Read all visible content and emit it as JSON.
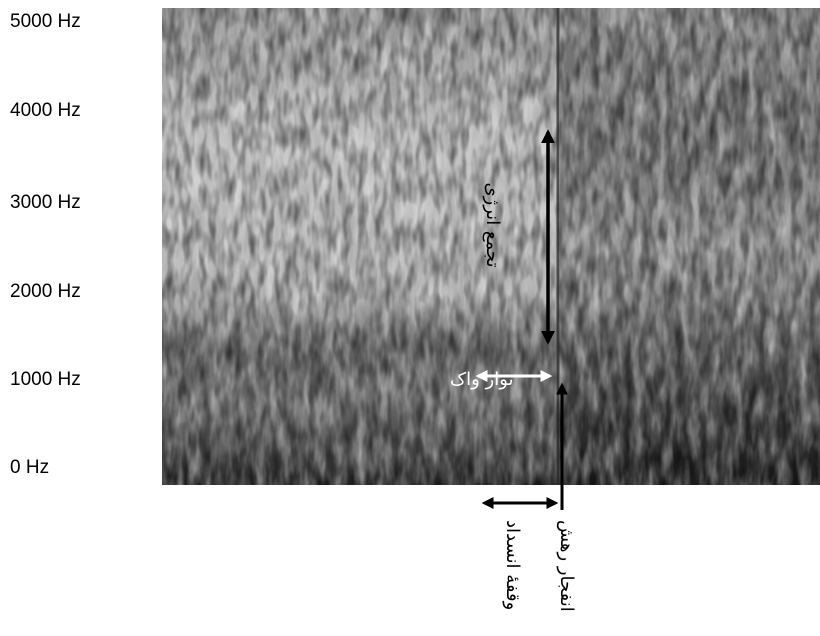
{
  "y_axis_labels": [
    "5000 Hz",
    "4000 Hz",
    "3000 Hz",
    "2000 Hz",
    "1000 Hz",
    "0 Hz"
  ],
  "annotations": {
    "energy_concentration": "تجمع انرژی",
    "voice_bar": "نوار واک",
    "closure": "وقفهٔ انسداد",
    "release_burst": "انفجار رهش"
  }
}
